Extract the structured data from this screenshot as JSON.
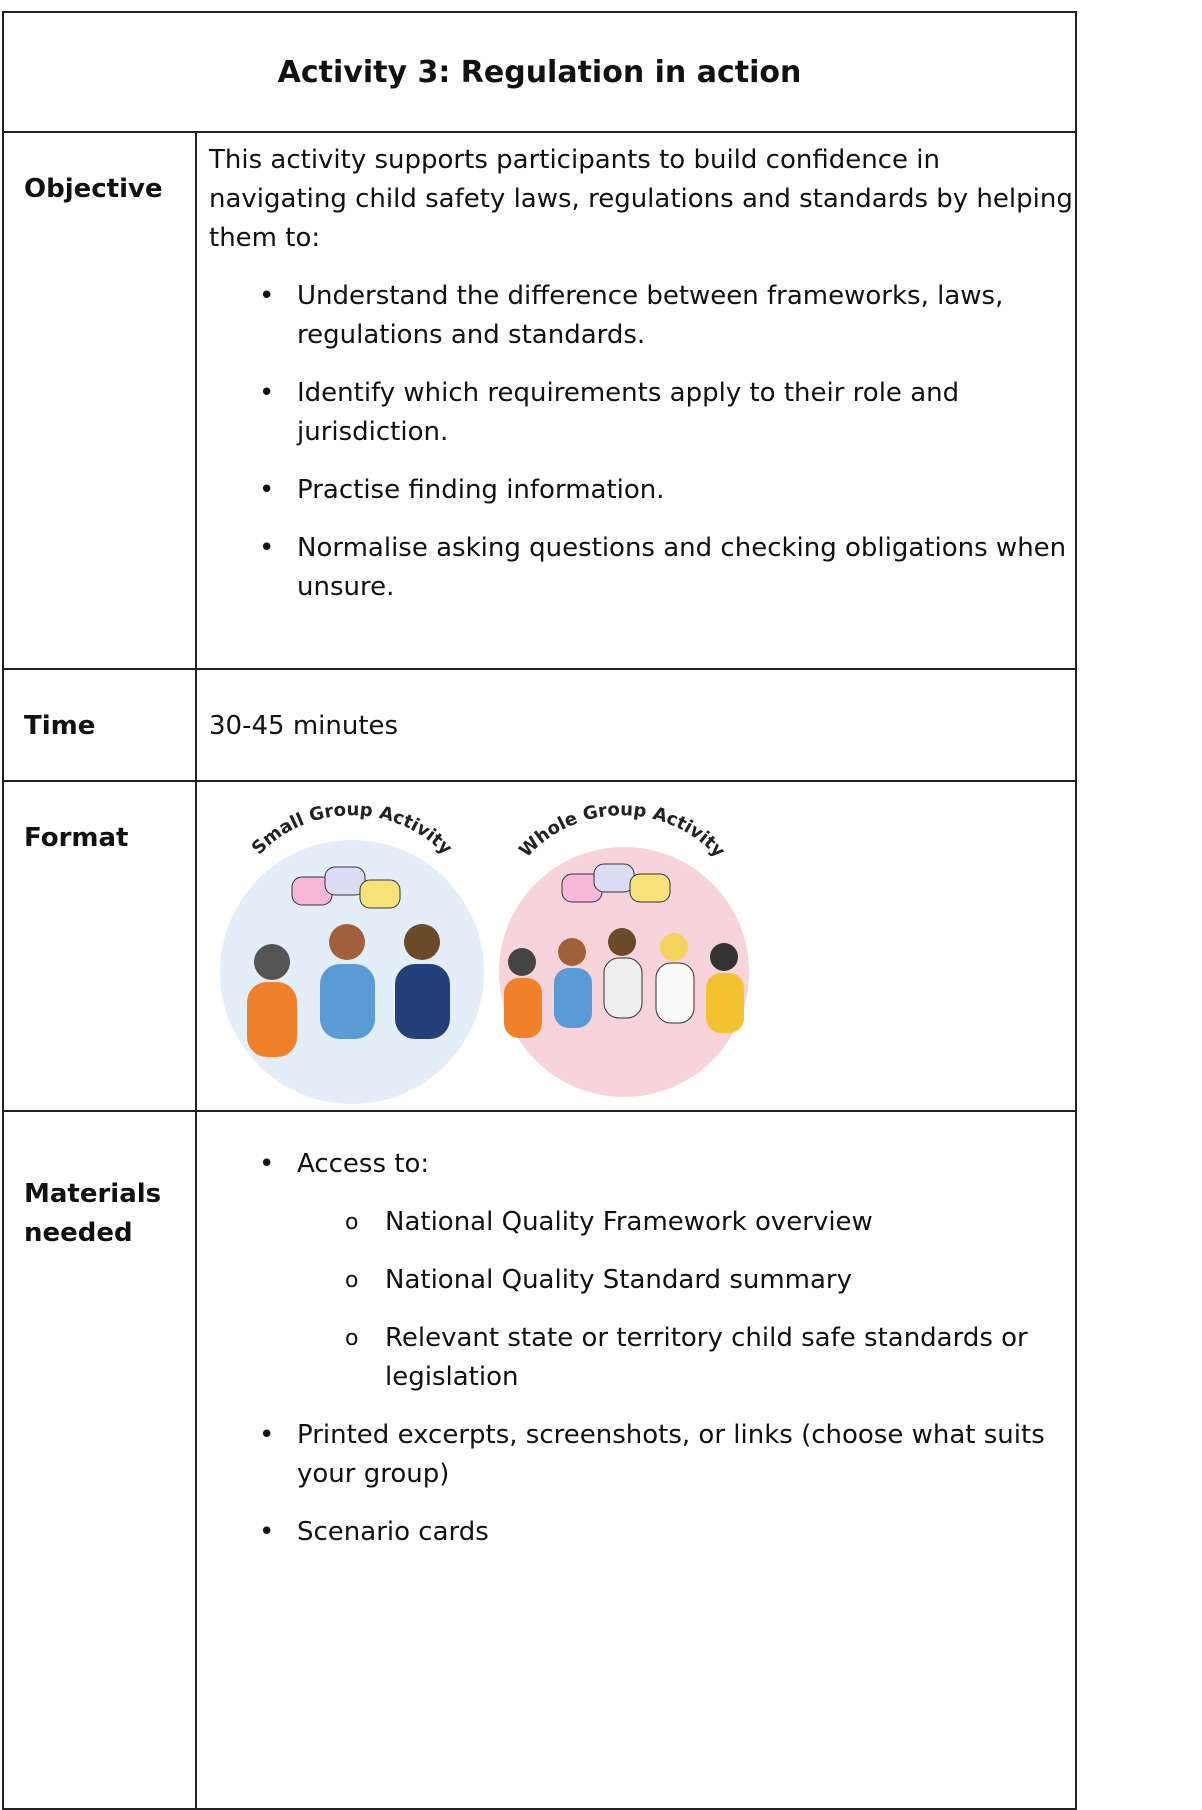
{
  "title": "Activity 3: Regulation in action",
  "objective": {
    "label": "Objective",
    "intro": "This activity supports participants to build confidence in navigating child safety laws, regulations and standards by helping them to:",
    "bullets": [
      "Understand the difference between frameworks, laws, regulations and standards.",
      "Identify which requirements apply to their role and jurisdiction.",
      "Practise finding information.",
      "Normalise asking questions and checking obligations when unsure."
    ]
  },
  "time": {
    "label": "Time",
    "text": "30-45 minutes"
  },
  "format": {
    "label": "Format",
    "images": [
      "Small Group Activity",
      "Whole Group Activity"
    ]
  },
  "materials": {
    "label": "Materials needed",
    "items": [
      {
        "text": "Access to:",
        "subitems": [
          "National Quality Framework overview",
          "National Quality Standard summary",
          "Relevant state or territory child safe standards or legislation"
        ]
      },
      {
        "text": "Printed excerpts, screenshots, or links (choose what suits your group)"
      },
      {
        "text": "Scenario cards"
      }
    ]
  }
}
